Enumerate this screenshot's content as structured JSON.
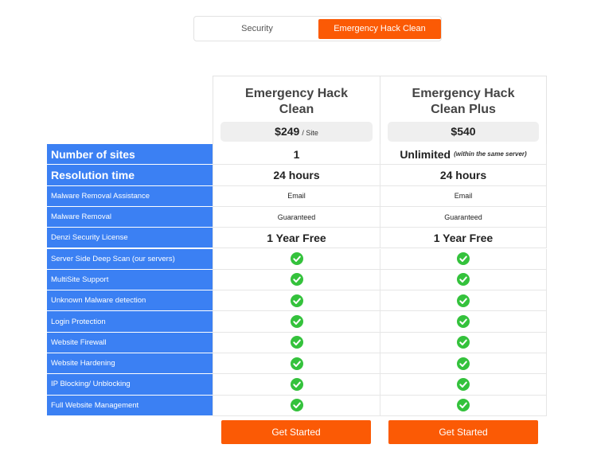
{
  "header": {
    "tabs": [
      "Security",
      "Emergency Hack Clean"
    ]
  },
  "plans": [
    {
      "name": "Emergency Hack Clean",
      "price": "$249",
      "unit": "/ Site",
      "button": "Get Started"
    },
    {
      "name": "Emergency Hack Clean Plus",
      "price": "$540",
      "button": "Get Started"
    }
  ],
  "rows": [
    {
      "label": "Number of sites",
      "cells": [
        "1",
        {
          "text": "Unlimited",
          "note": "(within the same server)"
        }
      ]
    },
    {
      "label": "Resolution time",
      "cells": [
        "24 hours",
        "24 hours"
      ]
    },
    {
      "label": "Malware Removal Assistance",
      "cells": [
        "Email",
        "Email"
      ]
    },
    {
      "label": "Malware Removal",
      "cells": [
        "Guaranteed",
        "Guaranteed"
      ]
    },
    {
      "label": "Denzi Security License",
      "cells": [
        "1 Year Free",
        "1 Year Free"
      ]
    },
    {
      "label": "Server Side Deep Scan (our servers)",
      "cells": [
        true,
        true
      ]
    },
    {
      "label": "MultiSite Support",
      "cells": [
        true,
        true
      ]
    },
    {
      "label": "Unknown Malware detection",
      "cells": [
        true,
        true
      ]
    },
    {
      "label": "Login Protection",
      "cells": [
        true,
        true
      ]
    },
    {
      "label": "Website Firewall",
      "cells": [
        true,
        true
      ]
    },
    {
      "label": "Website Hardening",
      "cells": [
        true,
        true
      ]
    },
    {
      "label": "IP Blocking/ Unblocking",
      "cells": [
        true,
        true
      ]
    },
    {
      "label": "Full Website Management",
      "cells": [
        true,
        true
      ]
    }
  ]
}
